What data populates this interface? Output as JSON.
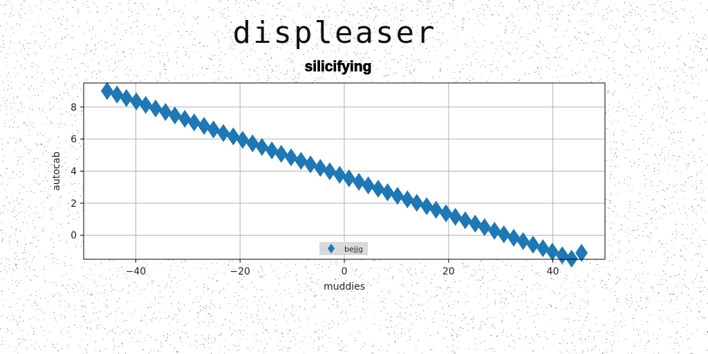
{
  "page": {
    "title": "displeaser",
    "subtitle": "silicifying"
  },
  "colors": {
    "series": "#1f77b4",
    "grid": "#b0b0b0",
    "axes": "#000000",
    "background": "#ffffff",
    "legend_bg": "#d9d9d9"
  },
  "chart_data": {
    "type": "scatter",
    "marker": "diamond",
    "xlabel": "muddies",
    "ylabel": "autocab",
    "xlim": [
      -50,
      50
    ],
    "ylim": [
      -1.5,
      9.5
    ],
    "xticks": [
      -40,
      -20,
      0,
      20,
      40
    ],
    "xtick_labels": [
      "−40",
      "−20",
      "0",
      "20",
      "40"
    ],
    "yticks": [
      0,
      2,
      4,
      6,
      8
    ],
    "ytick_labels": [
      "0",
      "2",
      "4",
      "6",
      "8"
    ],
    "grid": true,
    "legend": {
      "position": "lower-center",
      "entries": [
        "bejjg"
      ]
    },
    "series": [
      {
        "name": "bejjg",
        "x": [
          -45.5,
          -43.6,
          -41.8,
          -39.9,
          -38.1,
          -36.2,
          -34.3,
          -32.5,
          -30.6,
          -28.8,
          -26.9,
          -25.1,
          -23.2,
          -21.3,
          -19.5,
          -17.6,
          -15.8,
          -13.9,
          -12.1,
          -10.2,
          -8.3,
          -6.5,
          -4.6,
          -2.8,
          -0.9,
          0.9,
          2.8,
          4.6,
          6.5,
          8.3,
          10.2,
          12.1,
          13.9,
          15.8,
          17.6,
          19.5,
          21.3,
          23.2,
          25.1,
          26.9,
          28.8,
          30.6,
          32.5,
          34.3,
          36.2,
          38.1,
          39.9,
          41.8,
          43.6,
          45.5
        ],
        "y": [
          9.0,
          8.78,
          8.56,
          8.35,
          8.13,
          7.91,
          7.69,
          7.47,
          7.26,
          7.04,
          6.82,
          6.6,
          6.38,
          6.17,
          5.95,
          5.73,
          5.51,
          5.29,
          5.08,
          4.86,
          4.64,
          4.42,
          4.2,
          3.99,
          3.77,
          3.55,
          3.33,
          3.11,
          2.9,
          2.68,
          2.46,
          2.24,
          2.02,
          1.81,
          1.59,
          1.37,
          1.15,
          0.93,
          0.72,
          0.5,
          0.28,
          0.06,
          -0.16,
          -0.37,
          -0.59,
          -0.81,
          -1.03,
          -1.25,
          -1.46,
          -1.1
        ]
      }
    ]
  }
}
